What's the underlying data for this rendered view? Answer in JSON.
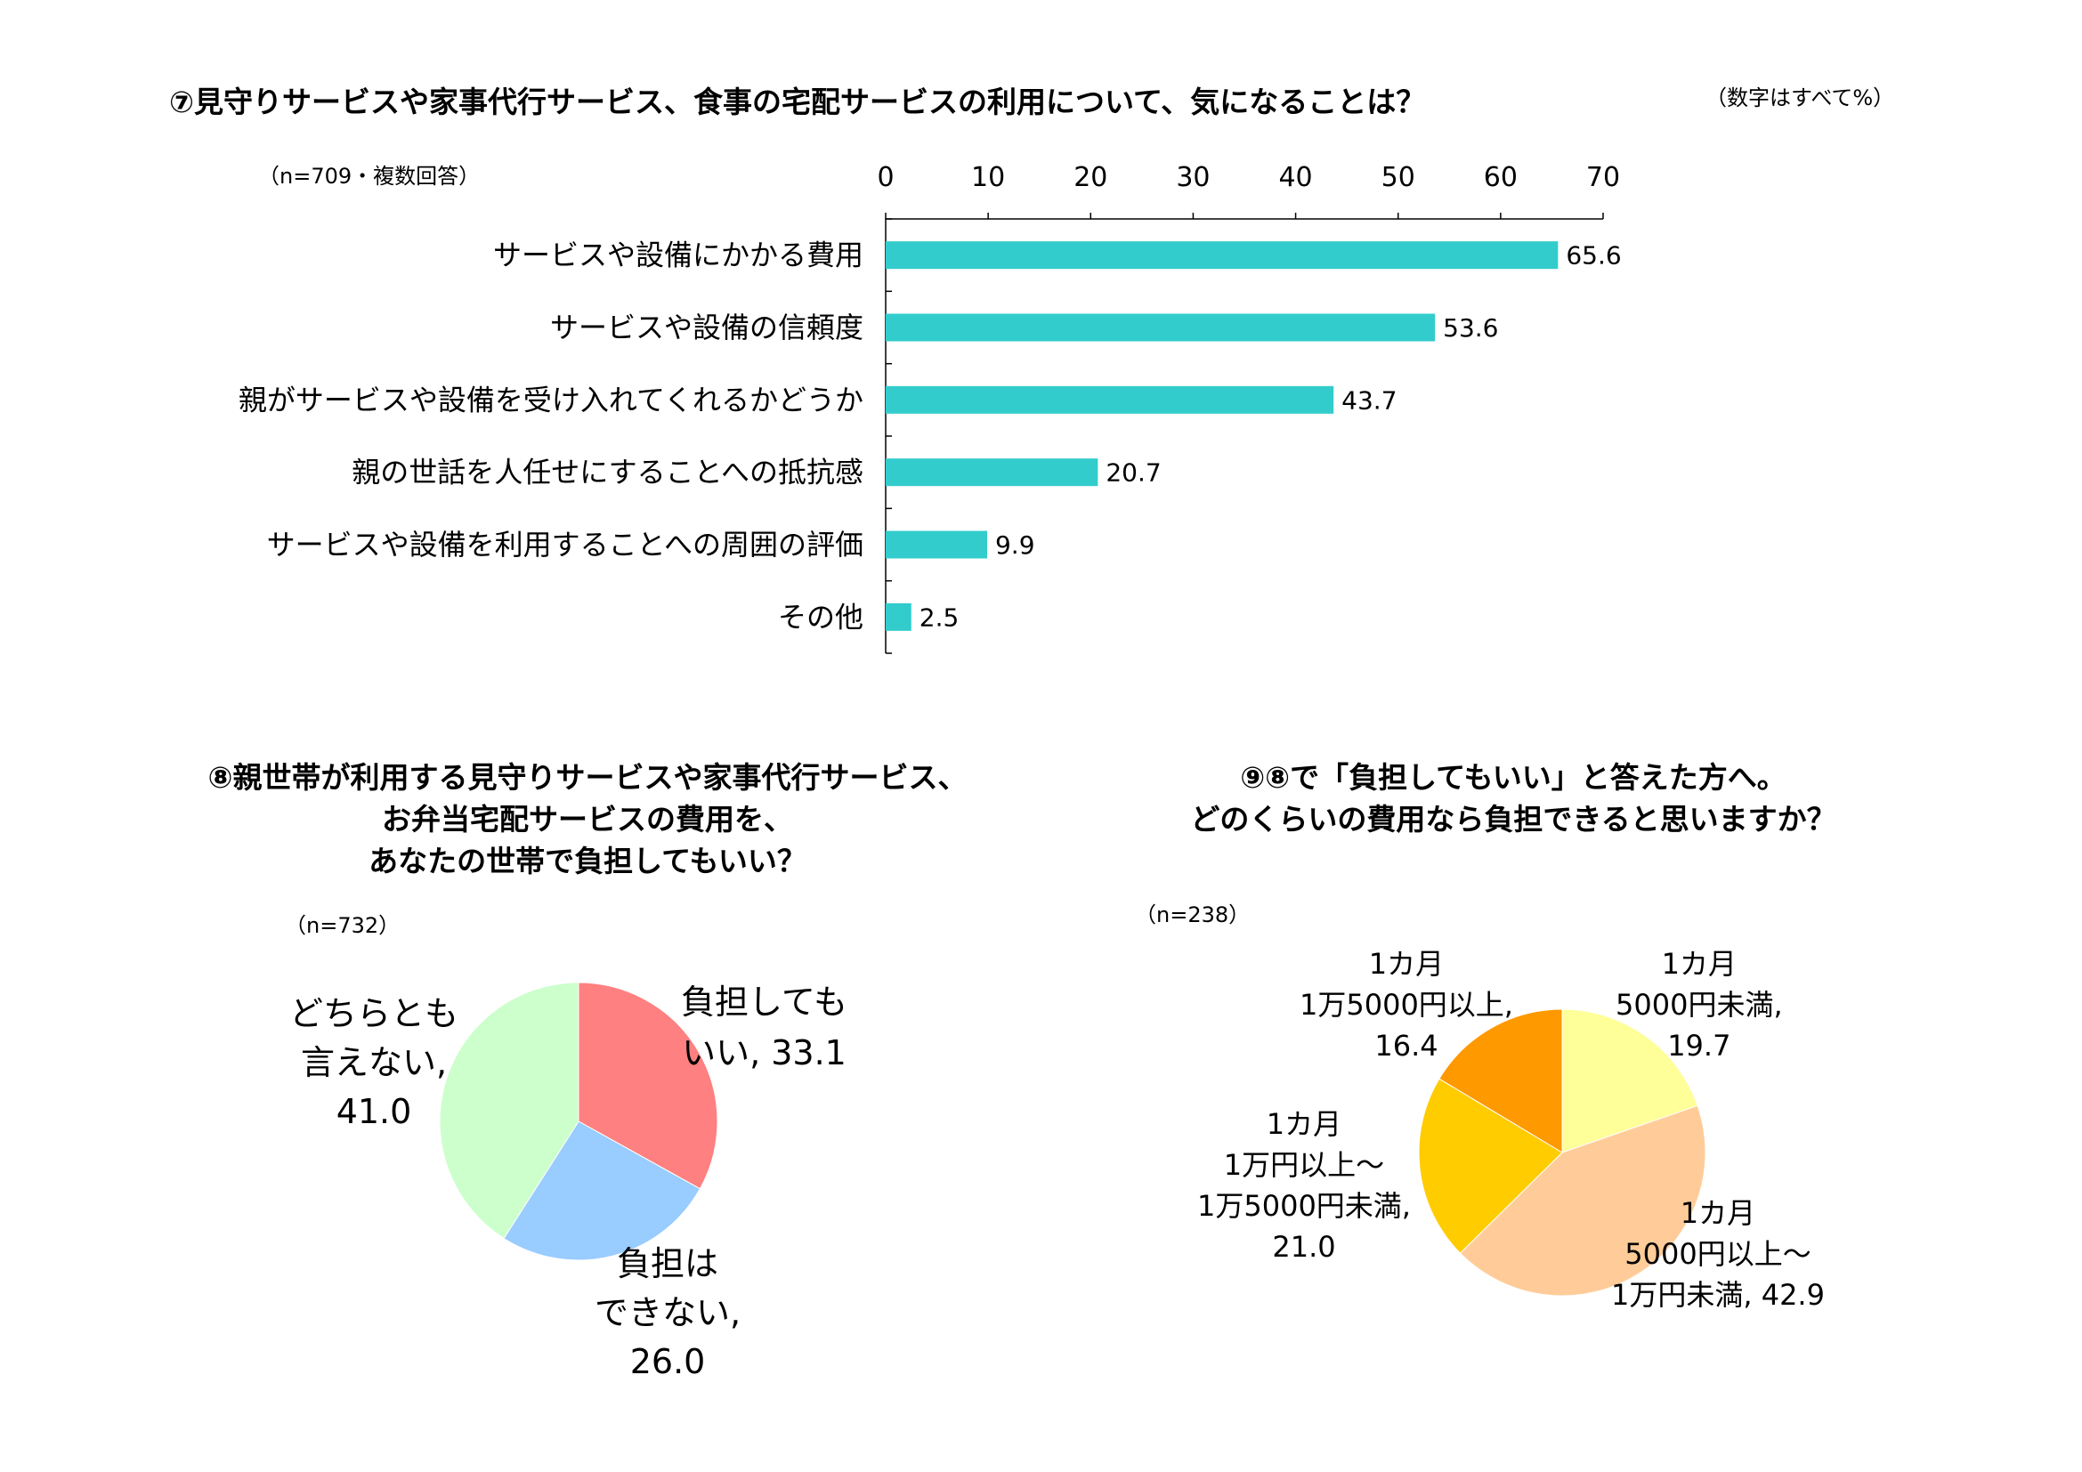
{
  "chart_data": [
    {
      "type": "bar",
      "title": "⑦見守りサービスや家事代行サービス、食事の宅配サービスの利用について、気になることは？",
      "unit_note": "（数字はすべて%）",
      "n_note": "（n=709・複数回答）",
      "orientation": "horizontal",
      "xlim": [
        0,
        70
      ],
      "ticks": [
        0,
        10,
        20,
        30,
        40,
        50,
        60,
        70
      ],
      "categories": [
        "サービスや設備にかかる費用",
        "サービスや設備の信頼度",
        "親がサービスや設備を受け入れてくれるかどうか",
        "親の世話を人任せにすることへの抵抗感",
        "サービスや設備を利用することへの周囲の評価",
        "その他"
      ],
      "values": [
        65.6,
        53.6,
        43.7,
        20.7,
        9.9,
        2.5
      ],
      "value_labels": [
        "65.6",
        "53.6",
        "43.7",
        "20.7",
        "9.9",
        "2.5"
      ],
      "color": "#33CCCC"
    },
    {
      "type": "pie",
      "title_lines": [
        "⑧親世帯が利用する見守りサービスや家事代行サービス、",
        "お弁当宅配サービスの費用を、",
        "あなたの世帯で負担してもいい？"
      ],
      "n_note": "（n=732）",
      "slices": [
        {
          "label_lines": [
            "負担しても",
            "いい, 33.1"
          ],
          "value": 33.1,
          "color": "#FF8080"
        },
        {
          "label_lines": [
            "負担は",
            "できない,",
            "26.0"
          ],
          "value": 26.0,
          "color": "#99CCFF"
        },
        {
          "label_lines": [
            "どちらとも",
            "言えない,",
            "41.0"
          ],
          "value": 41.0,
          "color": "#CCFFCC"
        }
      ]
    },
    {
      "type": "pie",
      "title_lines": [
        "⑨⑧で「負担してもいい」と答えた方へ。",
        "どのくらいの費用なら負担できると思いますか？"
      ],
      "n_note": "（n=238）",
      "slices": [
        {
          "label_lines": [
            "1カ月",
            "5000円未満,",
            "19.7"
          ],
          "value": 19.7,
          "color": "#FFFF99"
        },
        {
          "label_lines": [
            "1カ月",
            "5000円以上～",
            "1万円未満, 42.9"
          ],
          "value": 42.9,
          "color": "#FFCC99"
        },
        {
          "label_lines": [
            "1カ月",
            "1万円以上～",
            "1万5000円未満,",
            "21.0"
          ],
          "value": 21.0,
          "color": "#FFCC00"
        },
        {
          "label_lines": [
            "1カ月",
            "1万5000円以上,",
            "16.4"
          ],
          "value": 16.4,
          "color": "#FF9900"
        }
      ]
    }
  ]
}
